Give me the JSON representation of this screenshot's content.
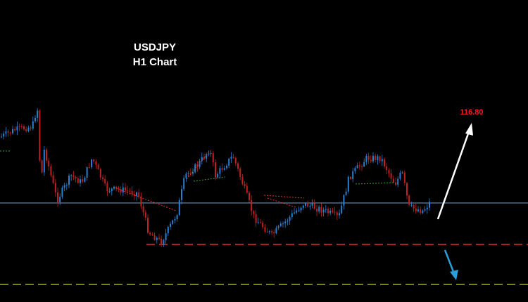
{
  "header": {
    "title": "USDJPY",
    "subtitle": "H1 Chart"
  },
  "annotations": {
    "target": "116.80"
  }
}
